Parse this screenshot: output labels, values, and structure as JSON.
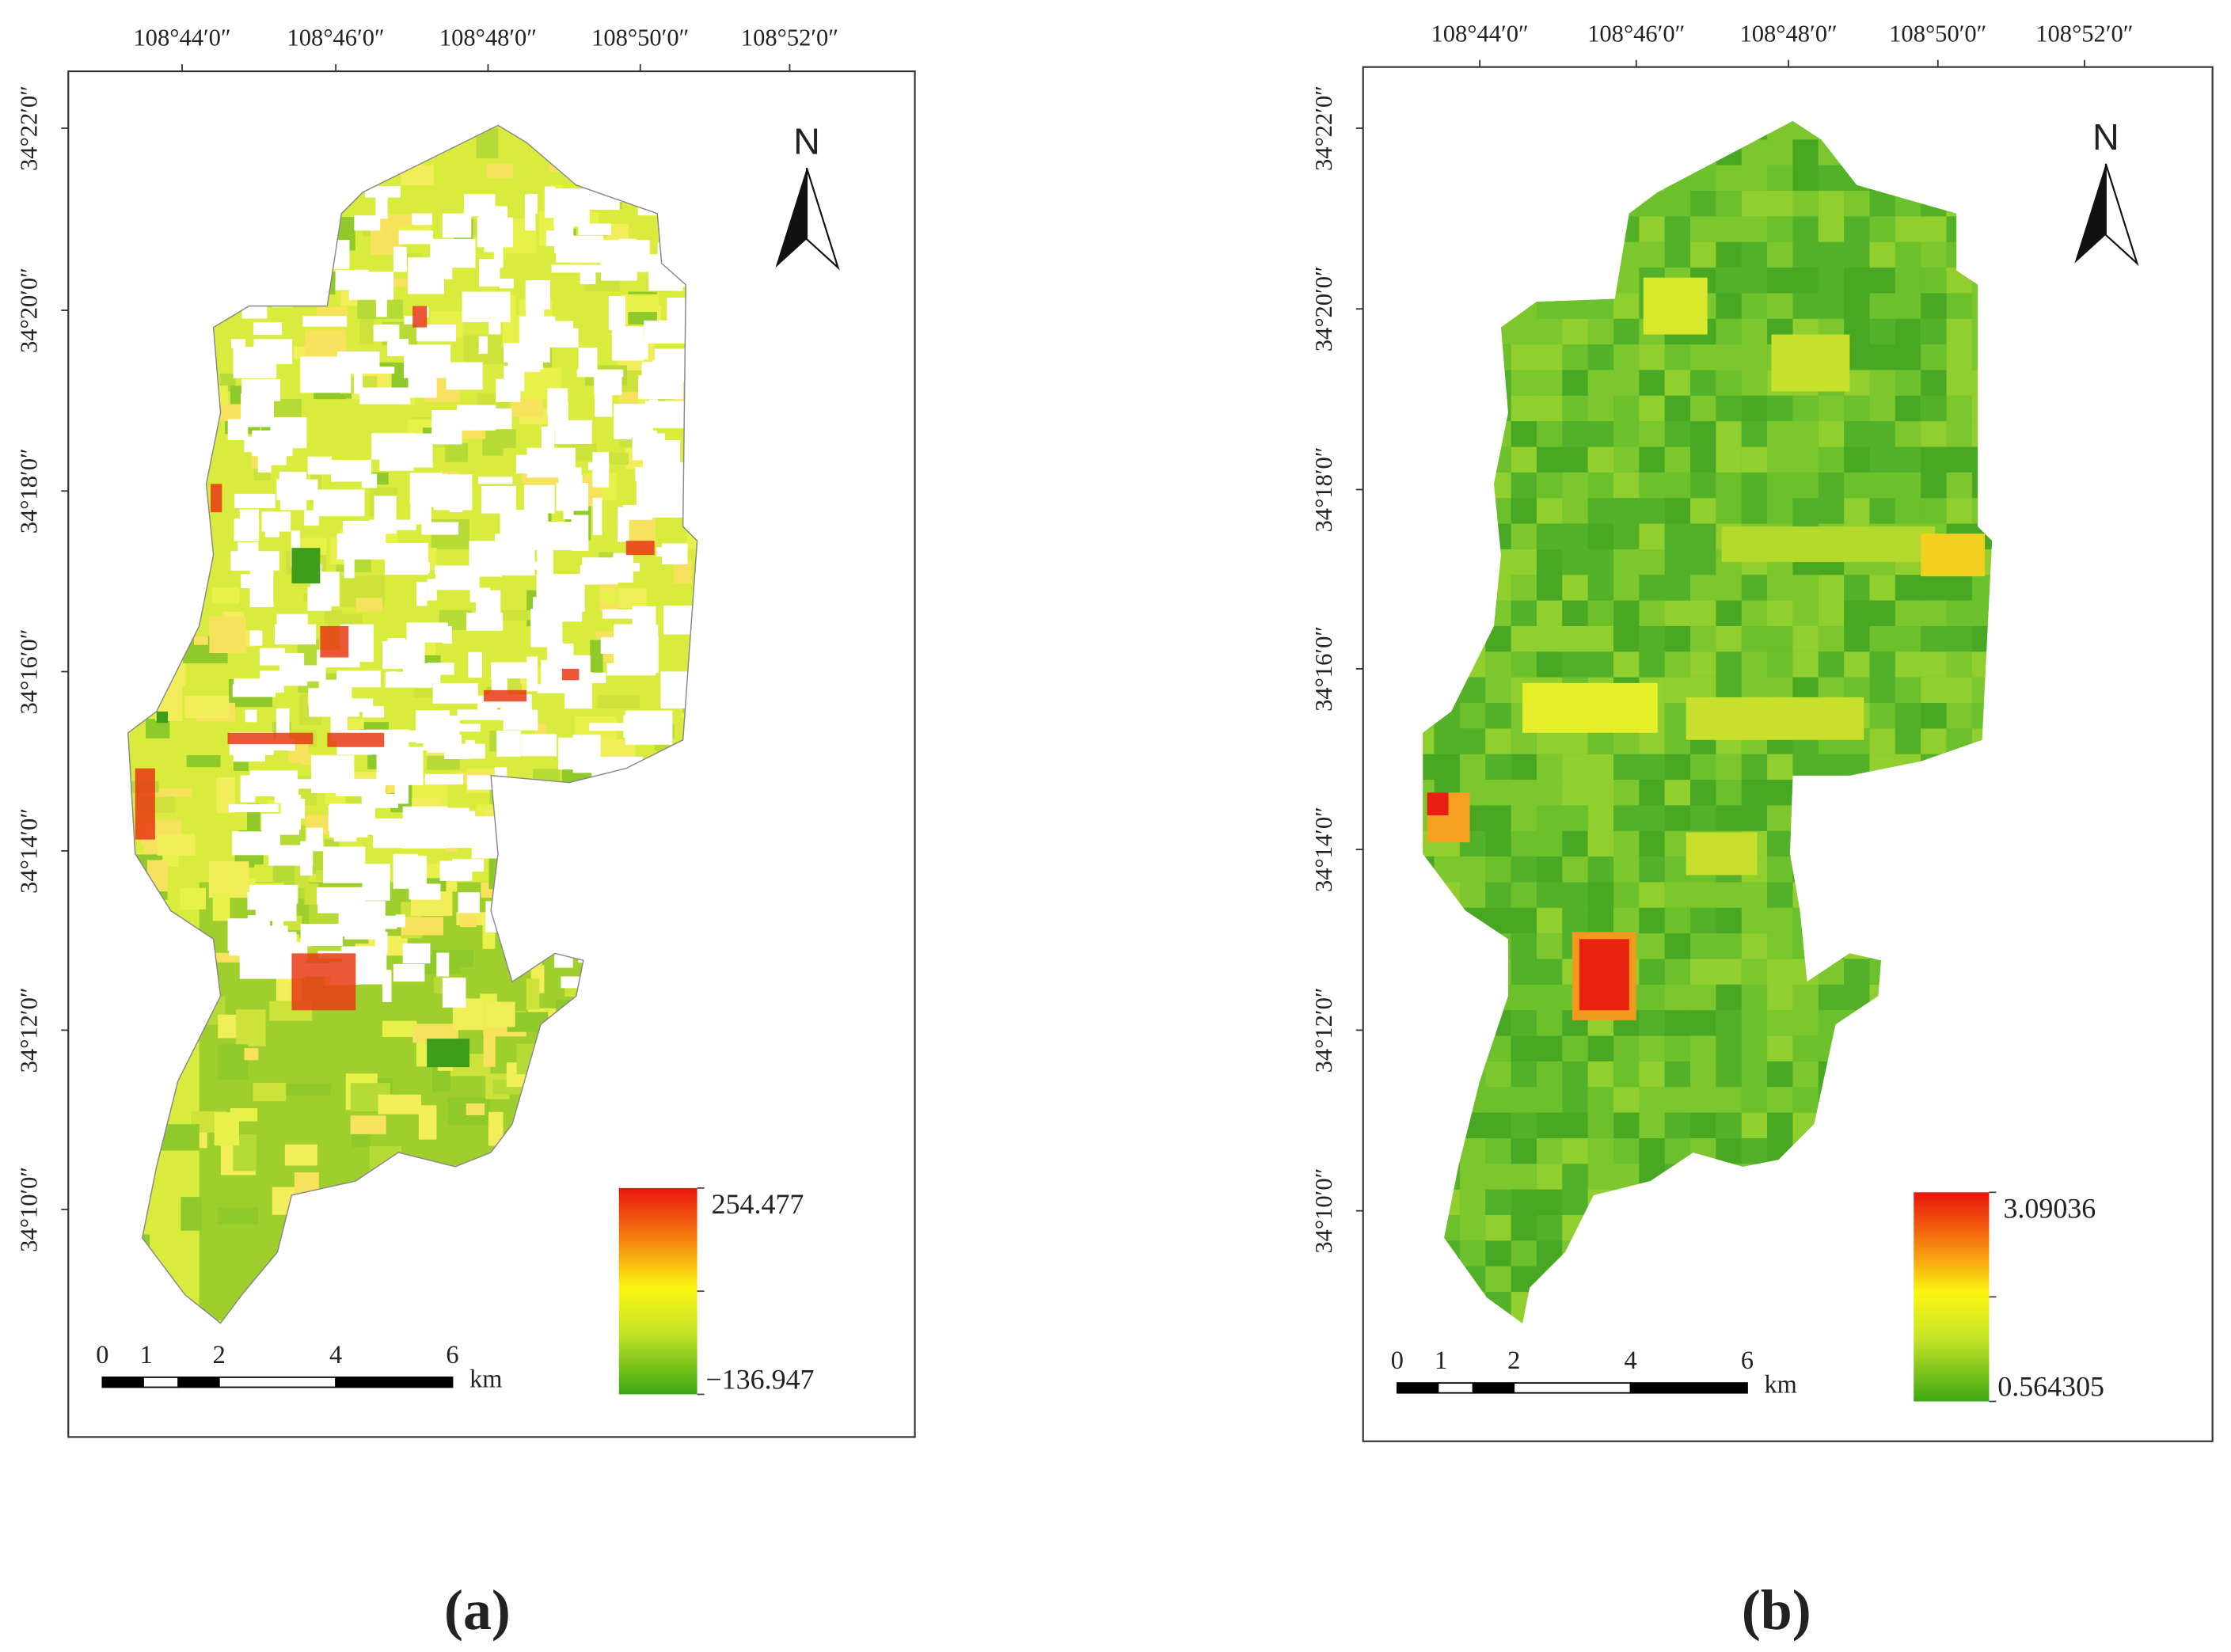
{
  "panels": [
    {
      "caption": "(a)",
      "north": "N",
      "longitude_labels": [
        "108°44′0″",
        "108°46′0″",
        "108°48′0″",
        "108°50′0″",
        "108°52′0″"
      ],
      "latitude_labels": [
        "34°22′0″",
        "34°20′0″",
        "34°18′0″",
        "34°16′0″",
        "34°14′0″",
        "34°12′0″",
        "34°10′0″"
      ],
      "legend": {
        "max": "254.477",
        "min": "−136.947"
      },
      "scale_bar": {
        "labels": [
          "0",
          "1",
          "2",
          "4",
          "6"
        ],
        "unit": "km"
      }
    },
    {
      "caption": "(b)",
      "north": "N",
      "longitude_labels": [
        "108°44′0″",
        "108°46′0″",
        "108°48′0″",
        "108°50′0″",
        "108°52′0″"
      ],
      "latitude_labels": [
        "34°22′0″",
        "34°20′0″",
        "34°18′0″",
        "34°16′0″",
        "34°14′0″",
        "34°12′0″",
        "34°10′0″"
      ],
      "legend": {
        "max": "3.09036",
        "min": "0.564305"
      },
      "scale_bar": {
        "labels": [
          "0",
          "1",
          "2",
          "4",
          "6"
        ],
        "unit": "km"
      }
    }
  ]
}
